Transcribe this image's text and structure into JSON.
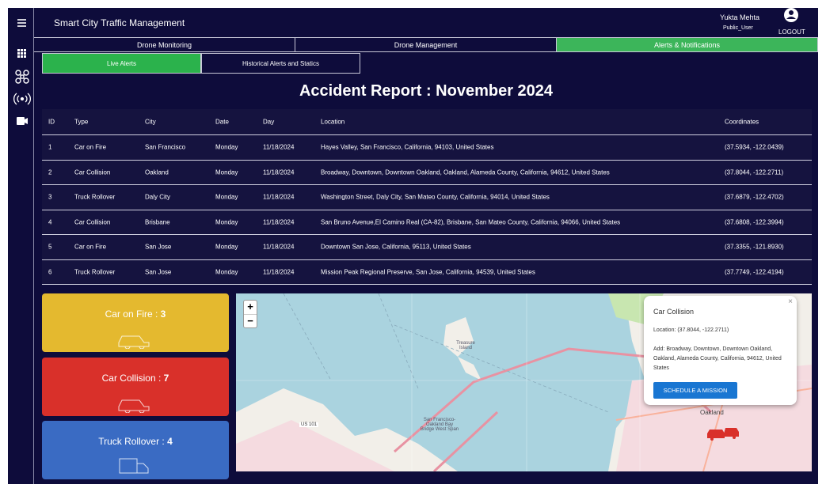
{
  "header": {
    "title": "Smart City Traffic Management",
    "user_name": "Yukta Mehta",
    "user_role": "Public_User",
    "logout": "LOGOUT"
  },
  "tabs": [
    "Drone Monitoring",
    "Drone Management",
    "Alerts & Notifications"
  ],
  "subtabs": [
    "Live Alerts",
    "Historical Alerts and Statics"
  ],
  "heading": "Accident Report : November 2024",
  "table": {
    "columns": [
      "ID",
      "Type",
      "City",
      "Date",
      "Day",
      "Location",
      "Coordinates"
    ],
    "rows": [
      [
        1,
        "Car on Fire",
        "San Francisco",
        "Monday",
        "11/18/2024",
        "Hayes Valley, San Francisco, California, 94103, United States",
        "(37.5934, -122.0439)"
      ],
      [
        2,
        "Car Collision",
        "Oakland",
        "Monday",
        "11/18/2024",
        "Broadway, Downtown, Downtown Oakland, Oakland, Alameda County, California, 94612, United States",
        "(37.8044, -122.2711)"
      ],
      [
        3,
        "Truck Rollover",
        "Daly City",
        "Monday",
        "11/18/2024",
        "Washington Street, Daly City, San Mateo County, California, 94014, United States",
        "(37.6879, -122.4702)"
      ],
      [
        4,
        "Car Collision",
        "Brisbane",
        "Monday",
        "11/18/2024",
        "San Bruno Avenue,El Camino Real (CA-82), Brisbane, San Mateo County, California, 94066, United States",
        "(37.6808, -122.3994)"
      ],
      [
        5,
        "Car on Fire",
        "San Jose",
        "Monday",
        "11/18/2024",
        "Downtown San Jose, California, 95113, United States",
        "(37.3355, -121.8930)"
      ],
      [
        6,
        "Truck Rollover",
        "San Jose",
        "Monday",
        "11/18/2024",
        "Mission Peak Regional Preserve, San Jose, California, 94539, United States",
        "(37.7749, -122.4194)"
      ]
    ]
  },
  "cards": [
    {
      "label": "Car on Fire :",
      "count": 3,
      "color": "#e4b92f"
    },
    {
      "label": "Car Collision :",
      "count": 7,
      "color": "#d9302a"
    },
    {
      "label": "Truck Rollover :",
      "count": 4,
      "color": "#3a6bc3"
    }
  ],
  "map": {
    "zoom_in": "+",
    "zoom_out": "−",
    "labels": [
      "Treasure Island",
      "San Francisco-Oakland Bay Bridge West Span",
      "Oakland",
      "US 101"
    ],
    "popup": {
      "title": "Car Collision",
      "location": "Location: (37.8044, -122.2711)",
      "address": "Add: Broadway, Downtown, Downtown Oakland, Oakland, Alameda County, California, 94612, United States",
      "button": "SCHEDULE A MISSION",
      "close": "×"
    }
  }
}
